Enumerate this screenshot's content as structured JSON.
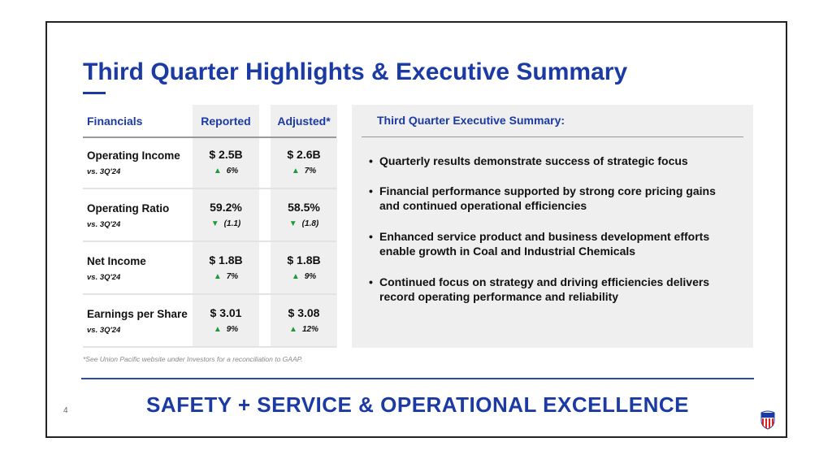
{
  "title": "Third Quarter Highlights & Executive Summary",
  "table": {
    "headers": [
      "Financials",
      "Reported",
      "Adjusted*"
    ],
    "rows": [
      {
        "label": "Operating Income",
        "sub": "vs. 3Q'24",
        "reported": "$ 2.5B",
        "reported_change": "6%",
        "reported_dir": "up",
        "adjusted": "$ 2.6B",
        "adjusted_change": "7%",
        "adjusted_dir": "up"
      },
      {
        "label": "Operating Ratio",
        "sub": "vs. 3Q'24",
        "reported": "59.2%",
        "reported_change": "(1.1)",
        "reported_dir": "down",
        "adjusted": "58.5%",
        "adjusted_change": "(1.8)",
        "adjusted_dir": "down"
      },
      {
        "label": "Net Income",
        "sub": "vs. 3Q'24",
        "reported": "$ 1.8B",
        "reported_change": "7%",
        "reported_dir": "up",
        "adjusted": "$ 1.8B",
        "adjusted_change": "9%",
        "adjusted_dir": "up"
      },
      {
        "label": "Earnings per Share",
        "sub": "vs. 3Q'24",
        "reported": "$ 3.01",
        "reported_change": "9%",
        "reported_dir": "up",
        "adjusted": "$ 3.08",
        "adjusted_change": "12%",
        "adjusted_dir": "up"
      }
    ],
    "footnote": "*See Union Pacific website under Investors for a reconciliation to GAAP."
  },
  "summary": {
    "heading": "Third Quarter Executive Summary:",
    "bullets": [
      "Quarterly results demonstrate success of strategic focus",
      "Financial performance supported by strong core pricing gains and continued operational efficiencies",
      "Enhanced service product and business development efforts enable growth in Coal and Industrial Chemicals",
      "Continued focus on strategy and driving efficiencies delivers record operating performance and reliability"
    ]
  },
  "footer": "SAFETY + SERVICE & OPERATIONAL EXCELLENCE",
  "page_number": "4",
  "logo_text": "UNION PACIFIC",
  "colors": {
    "brand": "#1b3aa3",
    "up": "#1a9a3a"
  }
}
